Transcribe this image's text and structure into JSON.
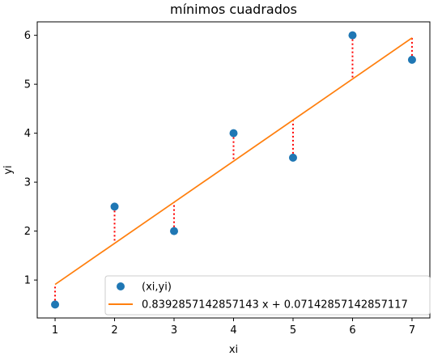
{
  "chart_data": {
    "type": "scatter",
    "title": "mínimos cuadrados",
    "xlabel": "xi",
    "ylabel": "yi",
    "xlim": [
      0.7,
      7.3
    ],
    "ylim": [
      0.225,
      6.275
    ],
    "xticks": [
      1,
      2,
      3,
      4,
      5,
      6,
      7
    ],
    "yticks": [
      1,
      2,
      3,
      4,
      5,
      6
    ],
    "grid": false,
    "legend_position": "lower-right",
    "points": {
      "name": "(xi,yi)",
      "color": "#1f77b4",
      "x": [
        1,
        2,
        3,
        4,
        5,
        6,
        7
      ],
      "y": [
        0.5,
        2.5,
        2.0,
        4.0,
        3.5,
        6.0,
        5.5
      ]
    },
    "fit_line": {
      "name": "0.8392857142857143 x + 0.07142857142857117",
      "color": "#ff7f0e",
      "slope": 0.8392857142857143,
      "intercept": 0.07142857142857117,
      "x": [
        1,
        7
      ]
    },
    "residuals": {
      "color": "#ff0000",
      "style": "dotted"
    }
  }
}
